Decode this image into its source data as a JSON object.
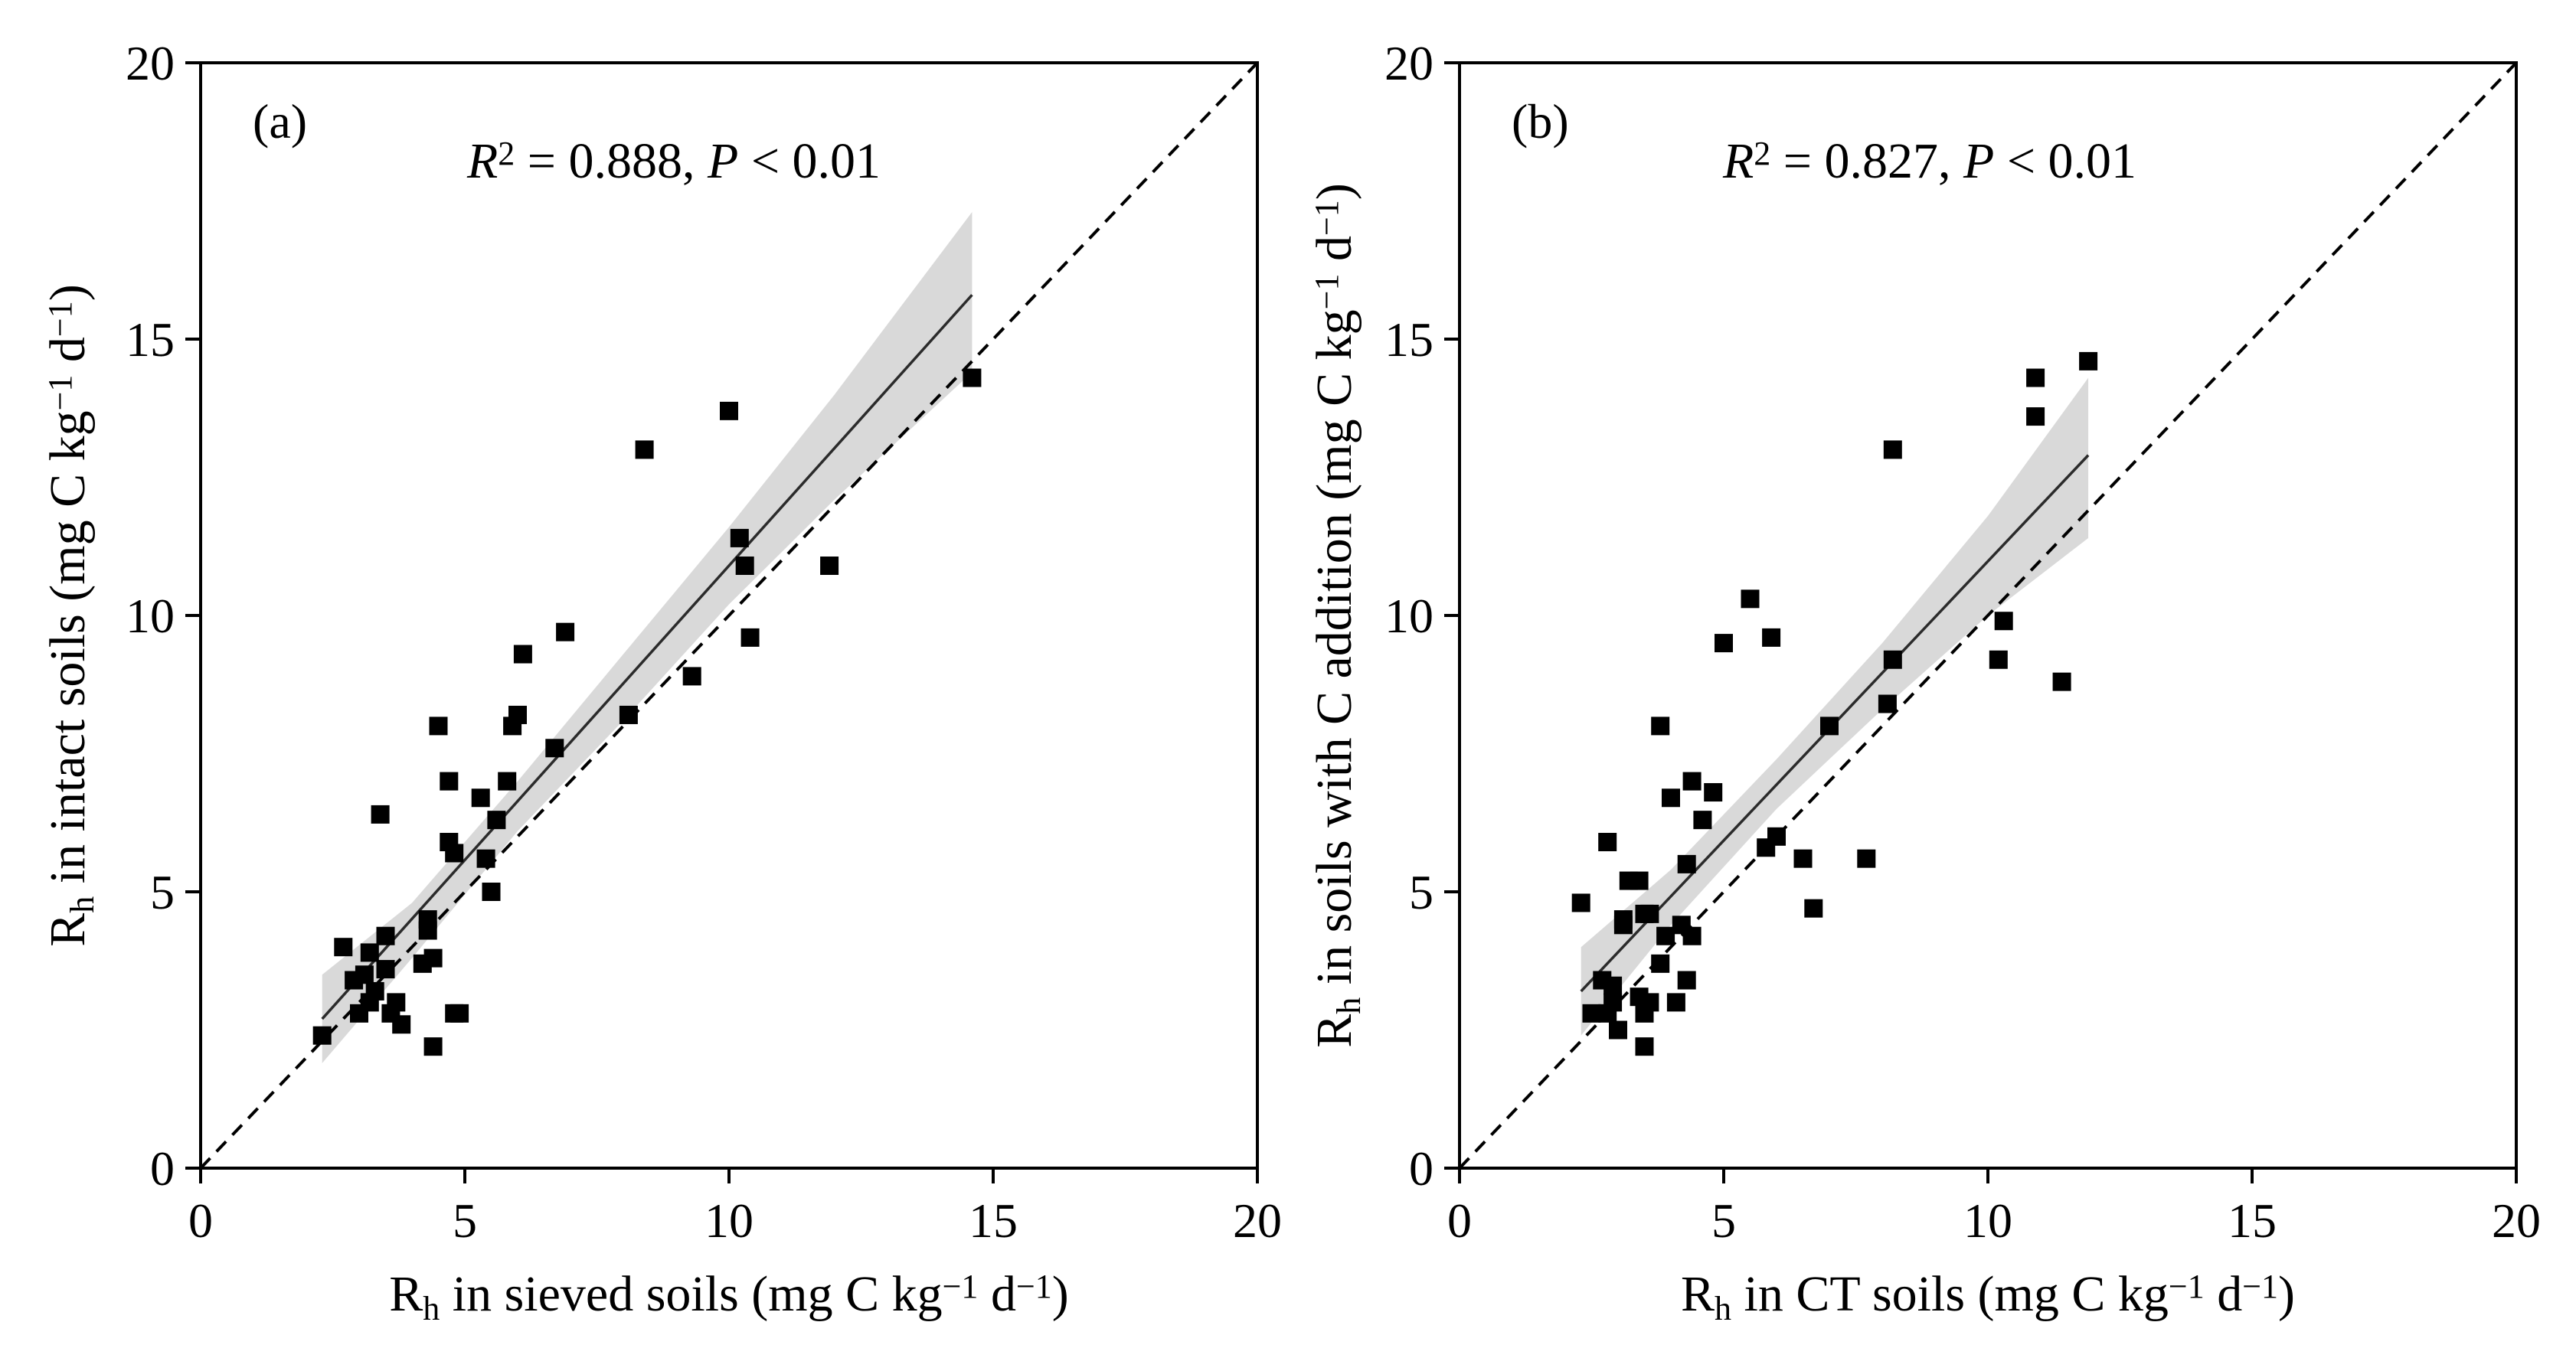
{
  "chart_data": [
    {
      "type": "scatter",
      "panel_label": "(a)",
      "stat": {
        "r2_symbol": "R",
        "r2_sup": "2",
        "r2_value": " = 0.888, ",
        "p_symbol": "P",
        "p_text": " < 0.01"
      },
      "xlabel": {
        "base": "R",
        "sub": "h",
        "text": " in sieved soils (mg C kg",
        "sup1": "−1",
        "mid": " d",
        "sup2": "−1",
        "end": ")"
      },
      "ylabel": {
        "base": "R",
        "sub": "h",
        "text": " in intact soils (mg C kg",
        "sup1": "−1",
        "mid": " d",
        "sup2": "−1",
        "end": ")"
      },
      "xlim": [
        0,
        20
      ],
      "ylim": [
        0,
        20
      ],
      "xticks": [
        "0",
        "5",
        "10",
        "15",
        "20"
      ],
      "yticks": [
        "0",
        "5",
        "10",
        "15",
        "20"
      ],
      "points": [
        [
          2.3,
          2.4
        ],
        [
          2.7,
          4.0
        ],
        [
          2.9,
          3.4
        ],
        [
          3.0,
          2.8
        ],
        [
          3.1,
          3.5
        ],
        [
          3.2,
          3.0
        ],
        [
          3.2,
          3.9
        ],
        [
          3.3,
          3.2
        ],
        [
          3.4,
          6.4
        ],
        [
          3.5,
          3.6
        ],
        [
          3.5,
          4.2
        ],
        [
          3.6,
          2.8
        ],
        [
          3.7,
          3.0
        ],
        [
          3.8,
          2.6
        ],
        [
          4.2,
          3.7
        ],
        [
          4.3,
          4.3
        ],
        [
          4.3,
          4.5
        ],
        [
          4.4,
          3.8
        ],
        [
          4.4,
          2.2
        ],
        [
          4.5,
          8.0
        ],
        [
          4.7,
          7.0
        ],
        [
          4.7,
          5.9
        ],
        [
          4.8,
          2.8
        ],
        [
          4.8,
          5.7
        ],
        [
          4.9,
          2.8
        ],
        [
          5.3,
          6.7
        ],
        [
          5.4,
          5.6
        ],
        [
          5.5,
          5.0
        ],
        [
          5.6,
          6.3
        ],
        [
          5.8,
          7.0
        ],
        [
          5.9,
          8.0
        ],
        [
          6.0,
          8.2
        ],
        [
          6.1,
          9.3
        ],
        [
          6.7,
          7.6
        ],
        [
          6.9,
          9.7
        ],
        [
          8.1,
          8.2
        ],
        [
          8.4,
          13.0
        ],
        [
          9.3,
          8.9
        ],
        [
          10.0,
          13.7
        ],
        [
          10.2,
          11.4
        ],
        [
          10.3,
          10.9
        ],
        [
          10.4,
          9.6
        ],
        [
          11.9,
          10.9
        ],
        [
          14.6,
          14.3
        ]
      ],
      "fit": {
        "x": [
          2.3,
          14.6
        ],
        "y": [
          2.7,
          15.8
        ]
      },
      "ci_band": {
        "x": [
          2.3,
          4.0,
          6.0,
          8.0,
          10.0,
          12.0,
          14.6
        ],
        "upper": [
          3.5,
          4.8,
          7.0,
          9.3,
          11.6,
          14.0,
          17.3
        ],
        "lower": [
          1.9,
          3.8,
          6.1,
          8.1,
          10.2,
          12.1,
          14.4
        ]
      },
      "identity_line": true
    },
    {
      "type": "scatter",
      "panel_label": "(b)",
      "stat": {
        "r2_symbol": "R",
        "r2_sup": "2",
        "r2_value": " = 0.827, ",
        "p_symbol": "P",
        "p_text": " < 0.01"
      },
      "xlabel": {
        "base": "R",
        "sub": "h",
        "text": " in CT soils (mg C kg",
        "sup1": "−1",
        "mid": " d",
        "sup2": "−1",
        "end": ")"
      },
      "ylabel": {
        "base": "R",
        "sub": "h",
        "text": " in soils with C addition (mg C kg",
        "sup1": "−1",
        "mid": " d",
        "sup2": "−1",
        "end": ")"
      },
      "xlim": [
        0,
        20
      ],
      "ylim": [
        0,
        20
      ],
      "xticks": [
        "0",
        "5",
        "10",
        "15",
        "20"
      ],
      "yticks": [
        "0",
        "5",
        "10",
        "15",
        "20"
      ],
      "points": [
        [
          2.3,
          4.8
        ],
        [
          2.5,
          2.8
        ],
        [
          2.7,
          3.4
        ],
        [
          2.8,
          5.9
        ],
        [
          2.8,
          2.8
        ],
        [
          2.9,
          3.3
        ],
        [
          2.9,
          3.0
        ],
        [
          3.0,
          2.5
        ],
        [
          3.1,
          4.5
        ],
        [
          3.1,
          4.4
        ],
        [
          3.2,
          5.2
        ],
        [
          3.4,
          5.2
        ],
        [
          3.4,
          3.1
        ],
        [
          3.5,
          4.6
        ],
        [
          3.5,
          2.2
        ],
        [
          3.5,
          2.8
        ],
        [
          3.6,
          4.6
        ],
        [
          3.6,
          3.0
        ],
        [
          3.8,
          3.7
        ],
        [
          3.8,
          8.0
        ],
        [
          3.9,
          4.2
        ],
        [
          4.0,
          6.7
        ],
        [
          4.1,
          3.0
        ],
        [
          4.2,
          4.4
        ],
        [
          4.3,
          5.5
        ],
        [
          4.3,
          3.4
        ],
        [
          4.4,
          7.0
        ],
        [
          4.4,
          4.2
        ],
        [
          4.6,
          6.3
        ],
        [
          4.8,
          6.8
        ],
        [
          5.0,
          9.5
        ],
        [
          5.5,
          10.3
        ],
        [
          5.8,
          5.8
        ],
        [
          5.9,
          9.6
        ],
        [
          6.0,
          6.0
        ],
        [
          6.5,
          5.6
        ],
        [
          6.7,
          4.7
        ],
        [
          7.0,
          8.0
        ],
        [
          7.7,
          5.6
        ],
        [
          8.1,
          8.4
        ],
        [
          8.2,
          9.2
        ],
        [
          8.2,
          13.0
        ],
        [
          10.2,
          9.2
        ],
        [
          10.3,
          9.9
        ],
        [
          10.9,
          14.3
        ],
        [
          10.9,
          13.6
        ],
        [
          11.4,
          8.8
        ],
        [
          11.9,
          14.6
        ]
      ],
      "fit": {
        "x": [
          2.3,
          11.9
        ],
        "y": [
          3.2,
          12.9
        ]
      },
      "ci_band": {
        "x": [
          2.3,
          4.0,
          6.0,
          8.0,
          10.0,
          11.9
        ],
        "upper": [
          4.0,
          5.4,
          7.4,
          9.5,
          11.8,
          14.3
        ],
        "lower": [
          2.4,
          4.4,
          6.5,
          8.3,
          10.0,
          11.4
        ]
      },
      "identity_line": true
    }
  ]
}
